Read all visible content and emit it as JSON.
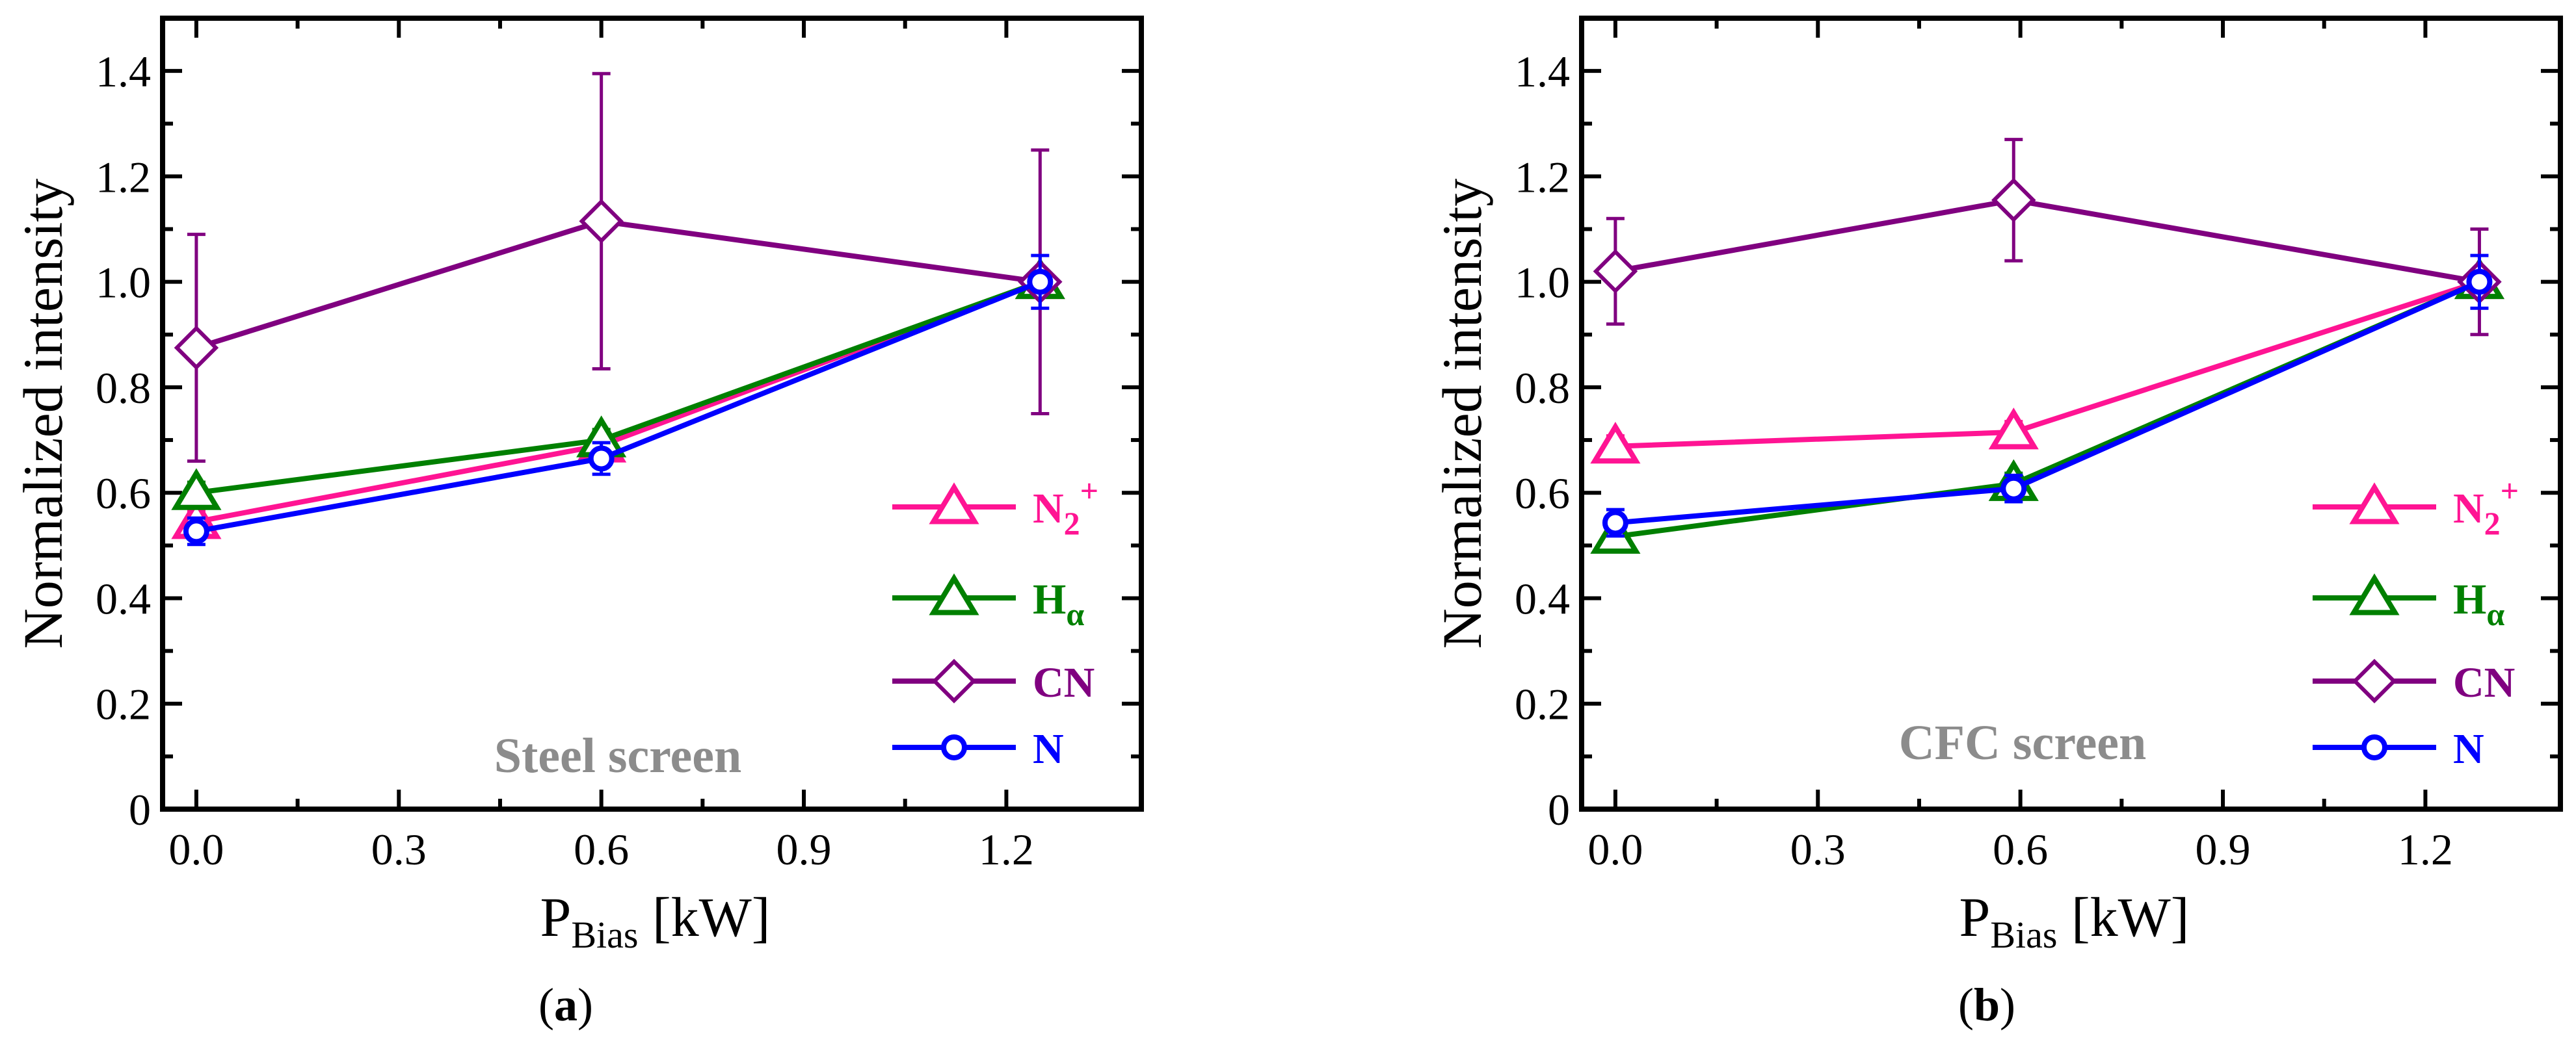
{
  "chart_data": [
    {
      "type": "line",
      "caption": "a",
      "annotation": "Steel screen",
      "xlabel": "P",
      "xlabel_sub": "Bias",
      "xlabel_unit": "[kW]",
      "ylabel": "Normalized intensity",
      "xlim": [
        -0.05,
        1.4
      ],
      "ylim": [
        0,
        1.5
      ],
      "xticks": [
        0.0,
        0.3,
        0.6,
        0.9,
        1.2
      ],
      "xtick_labels": [
        "0.0",
        "0.3",
        "0.6",
        "0.9",
        "1.2"
      ],
      "yticks": [
        0,
        0.2,
        0.4,
        0.6,
        0.8,
        1.0,
        1.2,
        1.4
      ],
      "ytick_labels": [
        "0",
        "0.2",
        "0.4",
        "0.6",
        "0.8",
        "1.0",
        "1.2",
        "1.4"
      ],
      "legend_position": "bottom-right",
      "series": [
        {
          "name": "N2+",
          "label_main": "N",
          "label_sub": "2",
          "label_sup": "+",
          "color": "#ff1493",
          "marker": "triangle",
          "x": [
            0.0,
            0.6,
            1.25
          ],
          "y": [
            0.545,
            0.69,
            1.0
          ],
          "err": [
            0.02,
            0.02,
            0.02
          ]
        },
        {
          "name": "Hα",
          "label_main": "H",
          "label_sub": "α",
          "label_sup": "",
          "color": "#008000",
          "marker": "triangle",
          "x": [
            0.0,
            0.6,
            1.25
          ],
          "y": [
            0.6,
            0.7,
            1.0
          ],
          "err": [
            0.02,
            0.02,
            0.02
          ]
        },
        {
          "name": "CN",
          "label_main": "CN",
          "label_sub": "",
          "label_sup": "",
          "color": "#800080",
          "marker": "diamond",
          "x": [
            0.0,
            0.6,
            1.25
          ],
          "y": [
            0.875,
            1.115,
            1.0
          ],
          "err": [
            0.215,
            0.28,
            0.25
          ]
        },
        {
          "name": "N",
          "label_main": "N",
          "label_sub": "",
          "label_sup": "",
          "color": "#0000ff",
          "marker": "circle",
          "x": [
            0.0,
            0.6,
            1.25
          ],
          "y": [
            0.527,
            0.665,
            1.0
          ],
          "err": [
            0.025,
            0.03,
            0.05
          ]
        }
      ]
    },
    {
      "type": "line",
      "caption": "b",
      "annotation": "CFC screen",
      "xlabel": "P",
      "xlabel_sub": "Bias",
      "xlabel_unit": "[kW]",
      "ylabel": "Normalized intensity",
      "xlim": [
        -0.05,
        1.4
      ],
      "ylim": [
        0,
        1.5
      ],
      "xticks": [
        0.0,
        0.3,
        0.6,
        0.9,
        1.2
      ],
      "xtick_labels": [
        "0.0",
        "0.3",
        "0.6",
        "0.9",
        "1.2"
      ],
      "yticks": [
        0,
        0.2,
        0.4,
        0.6,
        0.8,
        1.0,
        1.2,
        1.4
      ],
      "ytick_labels": [
        "0",
        "0.2",
        "0.4",
        "0.6",
        "0.8",
        "1.0",
        "1.2",
        "1.4"
      ],
      "legend_position": "bottom-right",
      "series": [
        {
          "name": "N2+",
          "label_main": "N",
          "label_sub": "2",
          "label_sup": "+",
          "color": "#ff1493",
          "marker": "triangle",
          "x": [
            0.0,
            0.59,
            1.28
          ],
          "y": [
            0.688,
            0.715,
            1.0
          ],
          "err": [
            0.02,
            0.02,
            0.02
          ]
        },
        {
          "name": "Hα",
          "label_main": "H",
          "label_sub": "α",
          "label_sup": "",
          "color": "#008000",
          "marker": "triangle",
          "x": [
            0.0,
            0.59,
            1.28
          ],
          "y": [
            0.517,
            0.617,
            1.0
          ],
          "err": [
            0.02,
            0.02,
            0.02
          ]
        },
        {
          "name": "CN",
          "label_main": "CN",
          "label_sub": "",
          "label_sup": "",
          "color": "#800080",
          "marker": "diamond",
          "x": [
            0.0,
            0.59,
            1.28
          ],
          "y": [
            1.02,
            1.155,
            1.0
          ],
          "err": [
            0.1,
            0.115,
            0.1
          ]
        },
        {
          "name": "N",
          "label_main": "N",
          "label_sub": "",
          "label_sup": "",
          "color": "#0000ff",
          "marker": "circle",
          "x": [
            0.0,
            0.59,
            1.28
          ],
          "y": [
            0.543,
            0.608,
            1.0
          ],
          "err": [
            0.025,
            0.025,
            0.05
          ]
        }
      ]
    }
  ]
}
